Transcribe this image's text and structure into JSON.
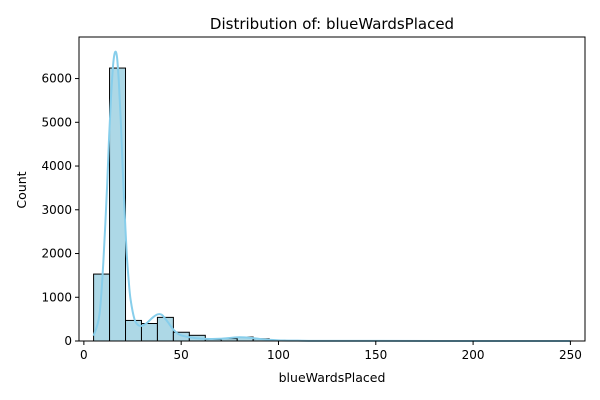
{
  "chart_data": {
    "type": "bar",
    "title": "Distribution of: blueWardsPlaced",
    "xlabel": "blueWardsPlaced",
    "ylabel": "Count",
    "xlim": [
      -2.5,
      257.5
    ],
    "ylim": [
      0,
      6950
    ],
    "xticks": [
      0,
      50,
      100,
      150,
      200,
      250
    ],
    "yticks": [
      0,
      1000,
      2000,
      3000,
      4000,
      5000,
      6000
    ],
    "grid": false,
    "legend": "none",
    "bins": [
      {
        "x0": 5,
        "x1": 13.2,
        "count": 1530
      },
      {
        "x0": 13.2,
        "x1": 21.4,
        "count": 6240
      },
      {
        "x0": 21.4,
        "x1": 29.6,
        "count": 470
      },
      {
        "x0": 29.6,
        "x1": 37.8,
        "count": 400
      },
      {
        "x0": 37.8,
        "x1": 46.0,
        "count": 540
      },
      {
        "x0": 46.0,
        "x1": 54.2,
        "count": 200
      },
      {
        "x0": 54.2,
        "x1": 62.4,
        "count": 130
      },
      {
        "x0": 62.4,
        "x1": 70.6,
        "count": 35
      },
      {
        "x0": 70.6,
        "x1": 78.8,
        "count": 55
      },
      {
        "x0": 78.8,
        "x1": 87.0,
        "count": 90
      },
      {
        "x0": 87.0,
        "x1": 95.2,
        "count": 50
      },
      {
        "x0": 95.2,
        "x1": 103.4,
        "count": 15
      },
      {
        "x0": 103.4,
        "x1": 111.6,
        "count": 8
      },
      {
        "x0": 111.6,
        "x1": 119.8,
        "count": 5
      },
      {
        "x0": 119.8,
        "x1": 128.0,
        "count": 3
      },
      {
        "x0": 128.0,
        "x1": 136.2,
        "count": 2
      },
      {
        "x0": 136.2,
        "x1": 144.4,
        "count": 2
      },
      {
        "x0": 144.4,
        "x1": 152.6,
        "count": 1
      },
      {
        "x0": 152.6,
        "x1": 160.8,
        "count": 1
      },
      {
        "x0": 160.8,
        "x1": 169.0,
        "count": 1
      },
      {
        "x0": 169.0,
        "x1": 177.2,
        "count": 1
      },
      {
        "x0": 177.2,
        "x1": 185.4,
        "count": 1
      },
      {
        "x0": 185.4,
        "x1": 193.6,
        "count": 1
      },
      {
        "x0": 193.6,
        "x1": 201.8,
        "count": 1
      },
      {
        "x0": 201.8,
        "x1": 210.0,
        "count": 1
      },
      {
        "x0": 210.0,
        "x1": 218.2,
        "count": 1
      },
      {
        "x0": 218.2,
        "x1": 226.4,
        "count": 1
      },
      {
        "x0": 226.4,
        "x1": 234.6,
        "count": 1
      },
      {
        "x0": 234.6,
        "x1": 242.8,
        "count": 1
      },
      {
        "x0": 242.8,
        "x1": 251.0,
        "count": 1
      }
    ],
    "kde": {
      "x": [
        5,
        8,
        10,
        12,
        13,
        14,
        15,
        16,
        17,
        18,
        19,
        20,
        21,
        22,
        23,
        24,
        26,
        28,
        30,
        32,
        34,
        36,
        38,
        40,
        42,
        44,
        46,
        48,
        50,
        55,
        60,
        65,
        70,
        75,
        80,
        85,
        90,
        95,
        100,
        110,
        120,
        150,
        200,
        250
      ],
      "y": [
        120,
        600,
        1800,
        3600,
        4700,
        5600,
        6300,
        6600,
        6500,
        5900,
        5000,
        3900,
        2900,
        2000,
        1400,
        950,
        500,
        360,
        350,
        400,
        480,
        560,
        610,
        600,
        500,
        380,
        260,
        180,
        130,
        80,
        55,
        45,
        50,
        70,
        85,
        75,
        50,
        30,
        15,
        8,
        4,
        2,
        1,
        0
      ]
    },
    "colors": {
      "bar_fill": "#ADD8E6",
      "bar_edge": "#000000",
      "kde_line": "#87CEEB"
    }
  }
}
